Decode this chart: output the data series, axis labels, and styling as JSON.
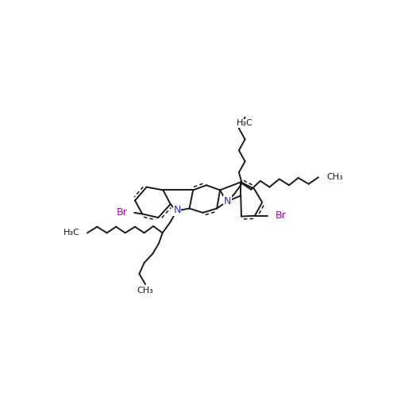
{
  "bg_color": "#ffffff",
  "bond_color": "#1a1a1a",
  "N_color": "#2222ee",
  "Br_color": "#aa00aa",
  "lw": 1.4,
  "lw_inner": 1.1,
  "figsize": [
    5.0,
    5.0
  ],
  "dpi": 100,
  "xlim": [
    0,
    500
  ],
  "ylim": [
    0,
    500
  ]
}
